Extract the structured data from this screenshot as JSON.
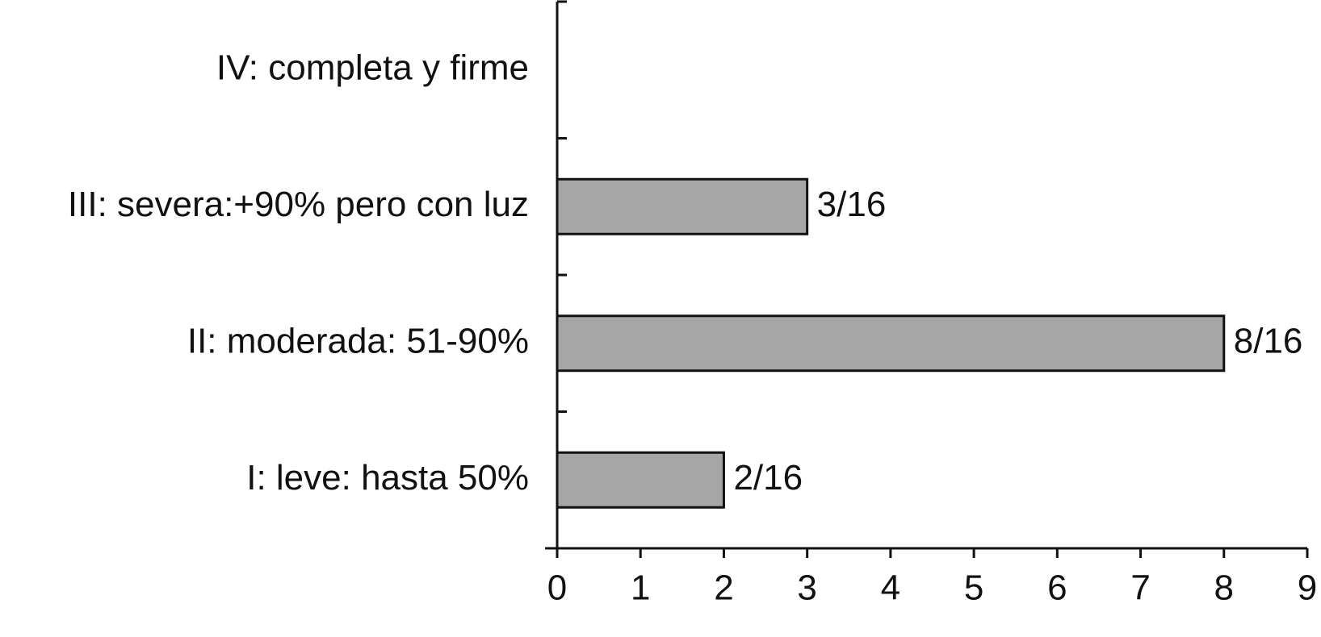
{
  "chart_data": {
    "type": "bar",
    "orientation": "horizontal",
    "categories": [
      "I: leve: hasta 50%",
      "II: moderada: 51-90%",
      "III: severa:+90% pero con luz",
      "IV: completa y firme"
    ],
    "values": [
      2,
      8,
      3,
      0
    ],
    "value_labels": [
      "2/16",
      "8/16",
      "3/16",
      null
    ],
    "color": "#a6a6a6",
    "xlim": [
      0,
      9
    ],
    "xticks": [
      0,
      1,
      2,
      3,
      4,
      5,
      6,
      7,
      8,
      9
    ],
    "grid": false
  }
}
